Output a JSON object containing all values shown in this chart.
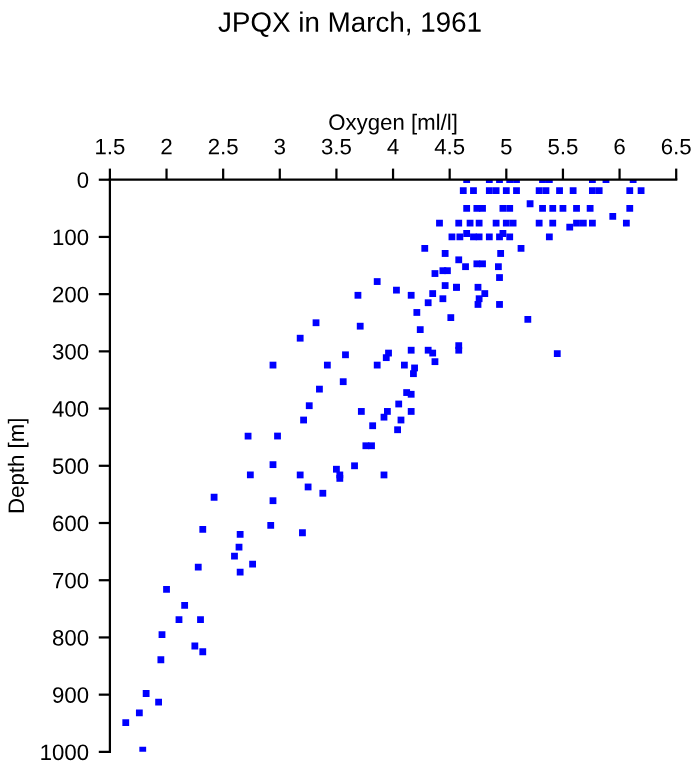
{
  "chart_data": {
    "type": "scatter",
    "title": "JPQX in March, 1961",
    "xlabel": "Oxygen [ml/l]",
    "ylabel": "Depth [m]",
    "x": [
      4.65,
      4.85,
      4.94,
      5.03,
      5.09,
      5.32,
      5.38,
      5.76,
      5.88,
      6.12,
      4.62,
      4.71,
      4.85,
      4.91,
      5.0,
      5.09,
      5.29,
      5.35,
      5.47,
      5.59,
      5.76,
      5.82,
      6.09,
      6.19,
      4.65,
      4.74,
      4.79,
      4.97,
      5.03,
      5.32,
      5.41,
      5.5,
      5.62,
      5.74,
      6.09,
      5.21,
      5.94,
      4.41,
      4.58,
      4.68,
      4.76,
      4.91,
      5.0,
      5.06,
      5.29,
      5.41,
      5.62,
      5.68,
      5.76,
      6.06,
      5.56,
      4.65,
      4.97,
      4.52,
      4.59,
      4.71,
      4.76,
      4.85,
      4.94,
      5.03,
      5.38,
      4.28,
      5.13,
      4.46,
      4.95,
      4.58,
      4.74,
      4.79,
      4.64,
      4.93,
      4.44,
      4.48,
      4.37,
      4.94,
      3.86,
      4.46,
      4.56,
      4.56,
      4.75,
      4.03,
      4.81,
      4.35,
      3.69,
      4.16,
      4.44,
      4.76,
      4.31,
      4.94,
      4.75,
      4.21,
      4.51,
      5.19,
      3.32,
      3.71,
      4.24,
      3.18,
      4.58,
      4.16,
      4.58,
      4.31,
      3.96,
      4.35,
      5.45,
      3.58,
      3.94,
      4.37,
      2.94,
      3.42,
      3.86,
      4.1,
      4.19,
      4.18,
      3.56,
      3.35,
      4.12,
      4.16,
      4.05,
      3.26,
      3.72,
      3.95,
      4.16,
      3.92,
      3.21,
      4.07,
      3.82,
      4.04,
      2.72,
      2.98,
      3.76,
      3.81,
      2.94,
      3.66,
      3.5,
      2.74,
      3.18,
      3.53,
      3.92,
      3.53,
      3.25,
      3.38,
      2.42,
      2.94,
      2.92,
      2.32,
      3.2,
      2.65,
      2.64,
      2.6,
      2.76,
      2.28,
      2.65,
      2.0,
      2.16,
      2.11,
      2.3,
      1.96,
      2.25,
      2.32,
      1.95,
      1.82,
      1.93,
      1.76,
      1.64,
      1.79
    ],
    "series": [
      {
        "color": "#0000ff",
        "values": [
          0,
          0,
          0,
          0,
          0,
          0,
          0,
          0,
          0,
          0,
          19,
          19,
          19,
          19,
          19,
          19,
          19,
          19,
          19,
          19,
          19,
          19,
          19,
          19,
          50,
          50,
          50,
          50,
          50,
          50,
          50,
          50,
          50,
          50,
          50,
          42,
          64,
          76,
          76,
          76,
          76,
          76,
          76,
          76,
          76,
          76,
          76,
          76,
          76,
          76,
          83,
          94,
          94,
          100,
          100,
          100,
          100,
          100,
          100,
          100,
          100,
          120,
          120,
          129,
          129,
          140,
          147,
          147,
          152,
          152,
          159,
          159,
          164,
          171,
          178,
          185,
          188,
          188,
          188,
          193,
          199,
          199,
          202,
          202,
          208,
          208,
          215,
          218,
          218,
          232,
          241,
          244,
          250,
          256,
          262,
          277,
          290,
          298,
          298,
          298,
          303,
          303,
          304,
          306,
          311,
          318,
          324,
          324,
          324,
          324,
          329,
          339,
          353,
          366,
          372,
          375,
          392,
          395,
          405,
          405,
          405,
          415,
          420,
          420,
          430,
          437,
          448,
          448,
          465,
          465,
          498,
          500,
          506,
          516,
          516,
          516,
          516,
          522,
          537,
          548,
          555,
          561,
          604,
          611,
          617,
          620,
          642,
          658,
          672,
          677,
          686,
          716,
          744,
          769,
          769,
          795,
          815,
          825,
          839,
          898,
          913,
          932,
          949,
          997
        ]
      }
    ],
    "marker": "square",
    "xlim": [
      1.5,
      6.5
    ],
    "xticks": [
      1.5,
      2,
      2.5,
      3,
      3.5,
      4,
      4.5,
      5,
      5.5,
      6,
      6.5
    ],
    "ylim": [
      1000,
      0
    ],
    "yticks": [
      0,
      100,
      200,
      300,
      400,
      500,
      600,
      700,
      800,
      900,
      1000
    ],
    "grid": false,
    "legend": false
  }
}
